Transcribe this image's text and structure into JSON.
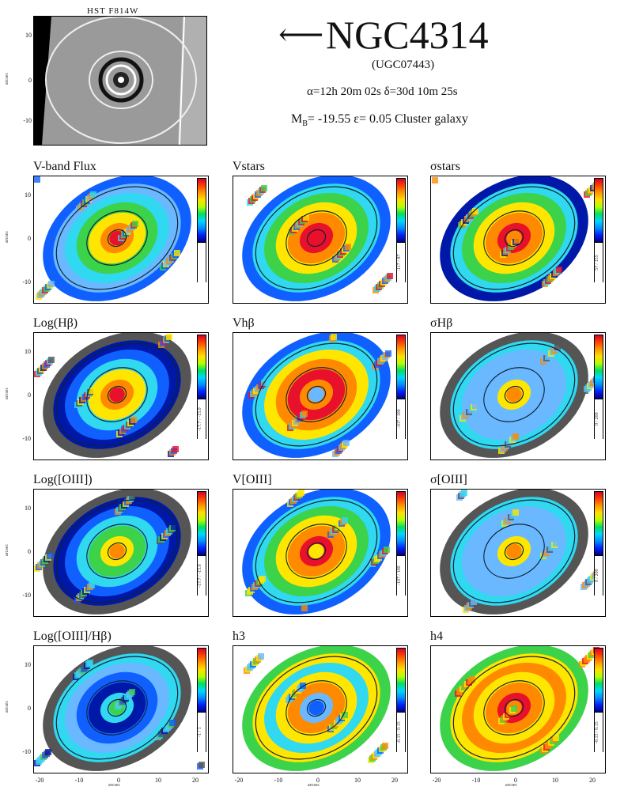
{
  "hst": {
    "title": "HST  F814W",
    "ticks": [
      "10",
      "0",
      "-10"
    ]
  },
  "header": {
    "arrow": "⟵",
    "name": "NGC4314",
    "alt_name": "(UGC07443)",
    "coords": "α=12h 20m 02s    δ=30d 10m 25s",
    "meta_m": "M",
    "meta_sub": "B",
    "meta_rest": "= -19.55    ε= 0.05    Cluster galaxy"
  },
  "axes": {
    "y_ticks": [
      "10",
      "0",
      "-10"
    ],
    "x_ticks": [
      "-20",
      "-10",
      "0",
      "10",
      "20"
    ],
    "y_label": "arcsec",
    "x_label": "arcsec"
  },
  "panels": [
    {
      "title": "V-band Flux",
      "cbar": ""
    },
    {
      "title": "Vstars",
      "cbar": "-117 / 87"
    },
    {
      "title": "σstars",
      "cbar": "57 / 155"
    },
    {
      "title": "Log(Hβ)",
      "cbar": "-17.7 / -15.0"
    },
    {
      "title": "Vhβ",
      "cbar": "-107 / 100"
    },
    {
      "title": "σHβ",
      "cbar": "0 / 200"
    },
    {
      "title": "Log([OIII])",
      "cbar": "-17.7 / -15.0"
    },
    {
      "title": "V[OIII]",
      "cbar": "-107 / 100"
    },
    {
      "title": "σ[OIII]",
      "cbar": "0 / 200"
    },
    {
      "title": "Log([OIII]/Hβ)",
      "cbar": "-1 / 1"
    },
    {
      "title": "h3",
      "cbar": "-0.15 / 0.15"
    },
    {
      "title": "h4",
      "cbar": "-0.15 / 0.15"
    }
  ],
  "colors": {
    "red": "#e8102a",
    "orange": "#ff8a00",
    "yellow": "#ffe600",
    "green": "#3cd24a",
    "cyan": "#30d8f0",
    "lightblue": "#6ab8ff",
    "blue": "#1060ff",
    "darkblue": "#0018a8",
    "grey": "#555555",
    "black": "#000000"
  }
}
